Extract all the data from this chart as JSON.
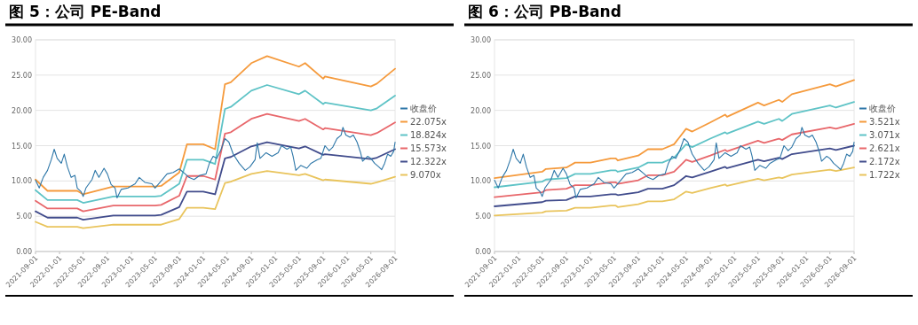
{
  "chart_data": [
    {
      "type": "line",
      "title": "图 5：公司 PE-Band",
      "xlim": [
        "2021-09-01",
        "2026-09-01"
      ],
      "xticks": [
        "2021-09-01",
        "2022-01-01",
        "2022-05-01",
        "2022-09-01",
        "2023-01-01",
        "2023-05-01",
        "2023-09-01",
        "2024-01-01",
        "2024-05-01",
        "2024-09-01",
        "2025-01-01",
        "2025-05-01",
        "2025-09-01",
        "2026-01-01",
        "2026-05-01",
        "2026-09-01"
      ],
      "ylim": [
        0,
        30
      ],
      "yticks": [
        {
          "value": 0,
          "label": "0.00"
        },
        {
          "value": 5,
          "label": "5.00"
        },
        {
          "value": 10,
          "label": "10.00"
        },
        {
          "value": 15,
          "label": "15.00"
        },
        {
          "value": 20,
          "label": "20.00"
        },
        {
          "value": 25,
          "label": "25.00"
        },
        {
          "value": 30,
          "label": "30.00"
        }
      ],
      "grid": "y",
      "legend": "right",
      "series": [
        {
          "name": "收盘价",
          "color": "#2e77a8",
          "x": [
            "2021-09-01",
            "2021-09-20",
            "2021-10-10",
            "2021-11-01",
            "2021-11-20",
            "2021-12-05",
            "2021-12-20",
            "2022-01-10",
            "2022-01-25",
            "2022-02-10",
            "2022-03-01",
            "2022-03-20",
            "2022-04-01",
            "2022-04-20",
            "2022-05-01",
            "2022-05-15",
            "2022-06-15",
            "2022-07-01",
            "2022-07-20",
            "2022-08-15",
            "2022-09-01",
            "2022-09-20",
            "2022-10-10",
            "2022-10-20",
            "2022-11-10",
            "2022-12-15",
            "2023-01-01",
            "2023-01-20",
            "2023-02-10",
            "2023-03-10",
            "2023-04-15",
            "2023-05-01",
            "2023-06-01",
            "2023-07-01",
            "2023-08-01",
            "2023-09-01",
            "2023-10-01",
            "2023-10-20",
            "2023-11-15",
            "2023-12-15",
            "2024-01-15",
            "2024-02-01",
            "2024-02-20",
            "2024-03-10",
            "2024-04-01",
            "2024-04-20",
            "2024-05-10",
            "2024-06-01",
            "2024-07-01",
            "2024-08-01",
            "2024-08-25",
            "2024-09-20",
            "2024-10-01",
            "2024-10-15",
            "2024-11-15",
            "2024-12-15",
            "2025-01-15",
            "2025-02-01",
            "2025-03-01",
            "2025-03-20",
            "2025-04-01",
            "2025-04-15",
            "2025-05-10",
            "2025-06-10",
            "2025-07-01",
            "2025-08-01",
            "2025-08-20",
            "2025-09-10",
            "2025-10-01",
            "2025-10-20",
            "2025-11-10",
            "2025-12-01",
            "2025-12-10",
            "2025-12-25",
            "2026-01-15",
            "2026-02-01",
            "2026-02-20",
            "2026-03-10",
            "2026-03-20",
            "2026-04-15",
            "2026-05-01",
            "2026-05-20",
            "2026-06-10",
            "2026-06-25",
            "2026-07-10",
            "2026-07-25",
            "2026-08-10",
            "2026-08-25",
            "2026-09-01"
          ],
          "values": [
            10.1,
            9.0,
            10.5,
            11.5,
            13.0,
            14.5,
            13.2,
            12.5,
            13.8,
            12.0,
            10.5,
            10.8,
            9.0,
            8.5,
            7.8,
            9.0,
            10.2,
            11.5,
            10.5,
            11.8,
            11.0,
            9.5,
            9.0,
            7.6,
            8.8,
            9.0,
            9.3,
            9.6,
            10.5,
            9.8,
            9.6,
            9.0,
            10.0,
            11.0,
            11.2,
            11.7,
            11.0,
            10.5,
            10.2,
            10.8,
            11.0,
            12.5,
            13.5,
            13.2,
            14.5,
            16.0,
            15.5,
            13.8,
            12.5,
            11.5,
            12.0,
            13.0,
            15.4,
            13.2,
            14.0,
            13.5,
            14.0,
            15.0,
            14.5,
            14.8,
            13.5,
            11.5,
            12.2,
            11.8,
            12.5,
            13.0,
            13.2,
            15.0,
            14.3,
            14.8,
            16.0,
            16.5,
            17.6,
            16.5,
            16.2,
            16.5,
            15.5,
            14.0,
            12.8,
            13.5,
            13.2,
            12.5,
            12.0,
            11.6,
            12.5,
            13.8,
            13.5,
            14.2,
            15.5
          ]
        },
        {
          "name": "22.075x",
          "color": "#f59a3c",
          "x": [
            "2021-09-01",
            "2021-11-01",
            "2022-04-01",
            "2022-05-01",
            "2022-10-01",
            "2023-05-01",
            "2023-06-01",
            "2023-09-01",
            "2023-10-10",
            "2024-01-01",
            "2024-03-01",
            "2024-04-20",
            "2024-05-20",
            "2024-09-01",
            "2024-11-20",
            "2025-05-01",
            "2025-06-01",
            "2025-09-01",
            "2025-09-10",
            "2026-05-01",
            "2026-06-01",
            "2026-09-01"
          ],
          "values": [
            10.2,
            8.6,
            8.6,
            8.1,
            9.2,
            9.2,
            9.3,
            11.2,
            15.2,
            15.2,
            14.5,
            23.7,
            24.0,
            26.7,
            27.7,
            26.2,
            26.7,
            24.5,
            24.8,
            23.4,
            23.8,
            25.9
          ]
        },
        {
          "name": "18.824x",
          "color": "#5ec3c6",
          "x": [
            "2021-09-01",
            "2021-11-01",
            "2022-04-01",
            "2022-05-01",
            "2022-10-01",
            "2023-05-01",
            "2023-06-01",
            "2023-09-01",
            "2023-10-10",
            "2024-01-01",
            "2024-03-01",
            "2024-04-20",
            "2024-05-20",
            "2024-09-01",
            "2024-11-20",
            "2025-05-01",
            "2025-06-01",
            "2025-09-01",
            "2025-09-10",
            "2026-05-01",
            "2026-06-01",
            "2026-09-01"
          ],
          "values": [
            8.7,
            7.3,
            7.3,
            6.9,
            7.8,
            7.8,
            7.9,
            9.6,
            13.0,
            13.0,
            12.4,
            20.2,
            20.5,
            22.8,
            23.6,
            22.3,
            22.8,
            20.9,
            21.1,
            20.0,
            20.3,
            22.1
          ]
        },
        {
          "name": "15.573x",
          "color": "#e8676b",
          "x": [
            "2021-09-01",
            "2021-11-01",
            "2022-04-01",
            "2022-05-01",
            "2022-10-01",
            "2023-05-01",
            "2023-06-01",
            "2023-09-01",
            "2023-10-10",
            "2024-01-01",
            "2024-03-01",
            "2024-04-20",
            "2024-05-20",
            "2024-09-01",
            "2024-11-20",
            "2025-05-01",
            "2025-06-01",
            "2025-09-01",
            "2025-09-10",
            "2026-05-01",
            "2026-06-01",
            "2026-09-01"
          ],
          "values": [
            7.2,
            6.1,
            6.1,
            5.7,
            6.5,
            6.5,
            6.6,
            7.9,
            10.7,
            10.7,
            10.2,
            16.7,
            16.9,
            18.8,
            19.5,
            18.5,
            18.8,
            17.3,
            17.5,
            16.5,
            16.8,
            18.3
          ]
        },
        {
          "name": "12.322x",
          "color": "#414c8c",
          "x": [
            "2021-09-01",
            "2021-11-01",
            "2022-04-01",
            "2022-05-01",
            "2022-10-01",
            "2023-05-01",
            "2023-06-01",
            "2023-09-01",
            "2023-10-10",
            "2024-01-01",
            "2024-03-01",
            "2024-04-20",
            "2024-05-20",
            "2024-09-01",
            "2024-11-20",
            "2025-05-01",
            "2025-06-01",
            "2025-09-01",
            "2025-09-10",
            "2026-05-01",
            "2026-06-01",
            "2026-09-01"
          ],
          "values": [
            5.7,
            4.8,
            4.8,
            4.5,
            5.1,
            5.1,
            5.2,
            6.3,
            8.5,
            8.5,
            8.1,
            13.2,
            13.4,
            14.9,
            15.5,
            14.6,
            14.9,
            13.7,
            13.8,
            13.1,
            13.3,
            14.5
          ]
        },
        {
          "name": "9.070x",
          "color": "#e9c45c",
          "x": [
            "2021-09-01",
            "2021-11-01",
            "2022-04-01",
            "2022-05-01",
            "2022-10-01",
            "2023-05-01",
            "2023-06-01",
            "2023-09-01",
            "2023-10-10",
            "2024-01-01",
            "2024-03-01",
            "2024-04-20",
            "2024-05-20",
            "2024-09-01",
            "2024-11-20",
            "2025-05-01",
            "2025-06-01",
            "2025-09-01",
            "2025-09-10",
            "2026-05-01",
            "2026-06-01",
            "2026-09-01"
          ],
          "values": [
            4.2,
            3.5,
            3.5,
            3.3,
            3.8,
            3.8,
            3.8,
            4.6,
            6.2,
            6.2,
            6.0,
            9.7,
            9.9,
            11.0,
            11.4,
            10.8,
            11.0,
            10.1,
            10.2,
            9.6,
            9.8,
            10.6
          ]
        }
      ]
    },
    {
      "type": "line",
      "title": "图 6：公司 PB-Band",
      "xlim": [
        "2021-09-01",
        "2026-09-01"
      ],
      "xticks": [
        "2021-09-01",
        "2022-01-01",
        "2022-05-01",
        "2022-09-01",
        "2023-01-01",
        "2023-05-01",
        "2023-09-01",
        "2024-01-01",
        "2024-05-01",
        "2024-09-01",
        "2025-01-01",
        "2025-05-01",
        "2025-09-01",
        "2026-01-01",
        "2026-05-01",
        "2026-09-01"
      ],
      "ylim": [
        0,
        30
      ],
      "yticks": [
        {
          "value": 0,
          "label": "0.00"
        },
        {
          "value": 5,
          "label": "5.00"
        },
        {
          "value": 10,
          "label": "10.00"
        },
        {
          "value": 15,
          "label": "15.00"
        },
        {
          "value": 20,
          "label": "20.00"
        },
        {
          "value": 25,
          "label": "25.00"
        },
        {
          "value": 30,
          "label": "30.00"
        }
      ],
      "grid": "y",
      "legend": "right",
      "series": [
        {
          "name": "收盘价",
          "color": "#2e77a8",
          "x": [
            "2021-09-01",
            "2021-09-20",
            "2021-10-10",
            "2021-11-01",
            "2021-11-20",
            "2021-12-05",
            "2021-12-20",
            "2022-01-10",
            "2022-01-25",
            "2022-02-10",
            "2022-03-01",
            "2022-03-20",
            "2022-04-01",
            "2022-04-20",
            "2022-05-01",
            "2022-05-15",
            "2022-06-15",
            "2022-07-01",
            "2022-07-20",
            "2022-08-15",
            "2022-09-01",
            "2022-09-20",
            "2022-10-10",
            "2022-10-20",
            "2022-11-10",
            "2022-12-15",
            "2023-01-01",
            "2023-01-20",
            "2023-02-10",
            "2023-03-10",
            "2023-04-15",
            "2023-05-01",
            "2023-06-01",
            "2023-07-01",
            "2023-08-01",
            "2023-09-01",
            "2023-10-01",
            "2023-10-20",
            "2023-11-15",
            "2023-12-15",
            "2024-01-15",
            "2024-02-01",
            "2024-02-20",
            "2024-03-10",
            "2024-04-01",
            "2024-04-20",
            "2024-05-10",
            "2024-06-01",
            "2024-07-01",
            "2024-08-01",
            "2024-08-25",
            "2024-09-20",
            "2024-10-01",
            "2024-10-15",
            "2024-11-15",
            "2024-12-15",
            "2025-01-15",
            "2025-02-01",
            "2025-03-01",
            "2025-03-20",
            "2025-04-01",
            "2025-04-15",
            "2025-05-10",
            "2025-06-10",
            "2025-07-01",
            "2025-08-01",
            "2025-08-20",
            "2025-09-10",
            "2025-10-01",
            "2025-10-20",
            "2025-11-10",
            "2025-12-01",
            "2025-12-10",
            "2025-12-25",
            "2026-01-15",
            "2026-02-01",
            "2026-02-20",
            "2026-03-10",
            "2026-03-20",
            "2026-04-15",
            "2026-05-01",
            "2026-05-20",
            "2026-06-10",
            "2026-06-25",
            "2026-07-10",
            "2026-07-25",
            "2026-08-10",
            "2026-08-25",
            "2026-09-01"
          ],
          "values": [
            10.1,
            9.0,
            10.5,
            11.5,
            13.0,
            14.5,
            13.2,
            12.5,
            13.8,
            12.0,
            10.5,
            10.8,
            9.0,
            8.5,
            7.8,
            9.0,
            10.2,
            11.5,
            10.5,
            11.8,
            11.0,
            9.5,
            9.0,
            7.6,
            8.8,
            9.0,
            9.3,
            9.6,
            10.5,
            9.8,
            9.6,
            9.0,
            10.0,
            11.0,
            11.2,
            11.7,
            11.0,
            10.5,
            10.2,
            10.8,
            11.0,
            12.5,
            13.5,
            13.2,
            14.5,
            16.0,
            15.5,
            13.8,
            12.5,
            11.5,
            12.0,
            13.0,
            15.4,
            13.2,
            14.0,
            13.5,
            14.0,
            15.0,
            14.5,
            14.8,
            13.5,
            11.5,
            12.2,
            11.8,
            12.5,
            13.0,
            13.2,
            15.0,
            14.3,
            14.8,
            16.0,
            16.5,
            17.6,
            16.5,
            16.2,
            16.5,
            15.5,
            14.0,
            12.8,
            13.5,
            13.2,
            12.5,
            12.0,
            11.6,
            12.5,
            13.8,
            13.5,
            14.2,
            15.5
          ]
        },
        {
          "name": "3.521x",
          "color": "#f59a3c",
          "x": [
            "2021-09-01",
            "2022-05-01",
            "2022-05-20",
            "2022-09-01",
            "2022-10-15",
            "2023-01-01",
            "2023-04-15",
            "2023-05-10",
            "2023-05-20",
            "2023-09-01",
            "2023-10-20",
            "2024-01-01",
            "2024-03-01",
            "2024-05-01",
            "2024-06-01",
            "2024-09-01",
            "2024-11-15",
            "2024-11-25",
            "2025-05-01",
            "2025-06-01",
            "2025-08-15",
            "2025-09-01",
            "2025-10-20",
            "2026-05-01",
            "2026-06-01",
            "2026-09-01"
          ],
          "values": [
            10.4,
            11.3,
            11.7,
            11.9,
            12.6,
            12.6,
            13.2,
            13.2,
            12.9,
            13.6,
            14.5,
            14.5,
            15.2,
            17.4,
            17.0,
            18.3,
            19.4,
            19.1,
            21.1,
            20.7,
            21.5,
            21.2,
            22.3,
            23.7,
            23.4,
            24.3
          ]
        },
        {
          "name": "3.071x",
          "color": "#5ec3c6",
          "x": [
            "2021-09-01",
            "2022-05-01",
            "2022-05-20",
            "2022-09-01",
            "2022-10-15",
            "2023-01-01",
            "2023-04-15",
            "2023-05-10",
            "2023-05-20",
            "2023-09-01",
            "2023-10-20",
            "2024-01-01",
            "2024-03-01",
            "2024-05-01",
            "2024-06-01",
            "2024-09-01",
            "2024-11-15",
            "2024-11-25",
            "2025-05-01",
            "2025-06-01",
            "2025-08-15",
            "2025-09-01",
            "2025-10-20",
            "2026-05-01",
            "2026-06-01",
            "2026-09-01"
          ],
          "values": [
            9.1,
            9.9,
            10.2,
            10.4,
            11.0,
            11.0,
            11.5,
            11.5,
            11.3,
            11.9,
            12.6,
            12.6,
            13.3,
            15.2,
            14.8,
            16.0,
            16.9,
            16.7,
            18.4,
            18.1,
            18.8,
            18.5,
            19.5,
            20.7,
            20.4,
            21.2
          ]
        },
        {
          "name": "2.621x",
          "color": "#e8676b",
          "x": [
            "2021-09-01",
            "2022-05-01",
            "2022-05-20",
            "2022-09-01",
            "2022-10-15",
            "2023-01-01",
            "2023-04-15",
            "2023-05-10",
            "2023-05-20",
            "2023-09-01",
            "2023-10-20",
            "2024-01-01",
            "2024-03-01",
            "2024-05-01",
            "2024-06-01",
            "2024-09-01",
            "2024-11-15",
            "2024-11-25",
            "2025-05-01",
            "2025-06-01",
            "2025-08-15",
            "2025-09-01",
            "2025-10-20",
            "2026-05-01",
            "2026-06-01",
            "2026-09-01"
          ],
          "values": [
            7.7,
            8.4,
            8.7,
            8.9,
            9.4,
            9.4,
            9.8,
            9.8,
            9.6,
            10.1,
            10.8,
            10.8,
            11.3,
            13.0,
            12.7,
            13.6,
            14.4,
            14.2,
            15.7,
            15.4,
            16.0,
            15.8,
            16.6,
            17.6,
            17.4,
            18.1
          ]
        },
        {
          "name": "2.172x",
          "color": "#414c8c",
          "x": [
            "2021-09-01",
            "2022-05-01",
            "2022-05-20",
            "2022-09-01",
            "2022-10-15",
            "2023-01-01",
            "2023-04-15",
            "2023-05-10",
            "2023-05-20",
            "2023-09-01",
            "2023-10-20",
            "2024-01-01",
            "2024-03-01",
            "2024-05-01",
            "2024-06-01",
            "2024-09-01",
            "2024-11-15",
            "2024-11-25",
            "2025-05-01",
            "2025-06-01",
            "2025-08-15",
            "2025-09-01",
            "2025-10-20",
            "2026-05-01",
            "2026-06-01",
            "2026-09-01"
          ],
          "values": [
            6.4,
            7.0,
            7.2,
            7.3,
            7.8,
            7.8,
            8.1,
            8.1,
            8.0,
            8.4,
            8.9,
            8.9,
            9.4,
            10.7,
            10.5,
            11.3,
            12.0,
            11.8,
            13.0,
            12.8,
            13.3,
            13.1,
            13.8,
            14.6,
            14.4,
            15.0
          ]
        },
        {
          "name": "1.722x",
          "color": "#e9c45c",
          "x": [
            "2021-09-01",
            "2022-05-01",
            "2022-05-20",
            "2022-09-01",
            "2022-10-15",
            "2023-01-01",
            "2023-04-15",
            "2023-05-10",
            "2023-05-20",
            "2023-09-01",
            "2023-10-20",
            "2024-01-01",
            "2024-03-01",
            "2024-05-01",
            "2024-06-01",
            "2024-09-01",
            "2024-11-15",
            "2024-11-25",
            "2025-05-01",
            "2025-06-01",
            "2025-08-15",
            "2025-09-01",
            "2025-10-20",
            "2026-05-01",
            "2026-06-01",
            "2026-09-01"
          ],
          "values": [
            5.1,
            5.5,
            5.7,
            5.8,
            6.2,
            6.2,
            6.5,
            6.5,
            6.3,
            6.7,
            7.1,
            7.1,
            7.4,
            8.5,
            8.3,
            9.0,
            9.5,
            9.3,
            10.3,
            10.1,
            10.5,
            10.4,
            10.9,
            11.6,
            11.4,
            11.9
          ]
        }
      ]
    }
  ]
}
